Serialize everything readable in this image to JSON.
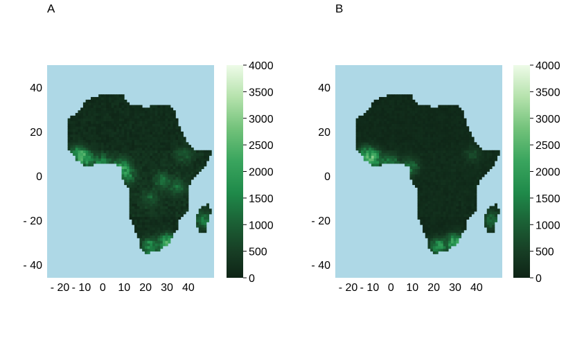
{
  "chart_data": [
    {
      "type": "heatmap",
      "panel_label": "A",
      "xticks": [
        -20,
        -10,
        0,
        10,
        20,
        30,
        40
      ],
      "xtick_labels": [
        "- 20",
        "- 10",
        "0",
        "10",
        "20",
        "30",
        "40"
      ],
      "yticks": [
        40,
        20,
        0,
        -20,
        -40
      ],
      "ytick_labels": [
        "40",
        "20",
        "0",
        "- 20",
        "- 40"
      ],
      "xlim": [
        -26,
        52
      ],
      "ylim": [
        -46,
        50
      ],
      "colorbar": {
        "ticks": [
          0,
          500,
          1000,
          1500,
          2000,
          2500,
          3000,
          3500,
          4000
        ],
        "tick_labels": [
          "0",
          "500",
          "1000",
          "1500",
          "2000",
          "2500",
          "3000",
          "3500",
          "4000"
        ],
        "range": [
          0,
          4000
        ]
      },
      "background_color": "#aed8e6",
      "hotspots": [
        {
          "lon": -8,
          "lat": 8,
          "value": 1800
        },
        {
          "lon": -12,
          "lat": 10,
          "value": 1400
        },
        {
          "lon": 0,
          "lat": 6,
          "value": 1500
        },
        {
          "lon": 9,
          "lat": 4,
          "value": 1700
        },
        {
          "lon": 12,
          "lat": 0,
          "value": 1100
        },
        {
          "lon": 28,
          "lat": -2,
          "value": 1000
        },
        {
          "lon": 35,
          "lat": -5,
          "value": 900
        },
        {
          "lon": 22,
          "lat": -10,
          "value": 800
        },
        {
          "lon": 30,
          "lat": -30,
          "value": 2300
        },
        {
          "lon": 22,
          "lat": -32,
          "value": 1900
        },
        {
          "lon": 47,
          "lat": -20,
          "value": 1300
        },
        {
          "lon": 38,
          "lat": 10,
          "value": 700
        }
      ]
    },
    {
      "type": "heatmap",
      "panel_label": "B",
      "xticks": [
        -20,
        -10,
        0,
        10,
        20,
        30,
        40
      ],
      "xtick_labels": [
        "- 20",
        "- 10",
        "0",
        "10",
        "20",
        "30",
        "40"
      ],
      "yticks": [
        40,
        20,
        0,
        -20,
        -40
      ],
      "ytick_labels": [
        "40",
        "20",
        "0",
        "- 20",
        "- 40"
      ],
      "xlim": [
        -26,
        52
      ],
      "ylim": [
        -46,
        50
      ],
      "colorbar": {
        "ticks": [
          0,
          500,
          1000,
          1500,
          2000,
          2500,
          3000,
          3500,
          4000
        ],
        "tick_labels": [
          "0",
          "500",
          "1000",
          "1500",
          "2000",
          "2500",
          "3000",
          "3500",
          "4000"
        ],
        "range": [
          0,
          4000
        ]
      },
      "background_color": "#aed8e6",
      "hotspots": [
        {
          "lon": -8,
          "lat": 8,
          "value": 2000
        },
        {
          "lon": -12,
          "lat": 10,
          "value": 1500
        },
        {
          "lon": 0,
          "lat": 6,
          "value": 1400
        },
        {
          "lon": 9,
          "lat": 4,
          "value": 1200
        },
        {
          "lon": 30,
          "lat": -30,
          "value": 2400
        },
        {
          "lon": 22,
          "lat": -32,
          "value": 2000
        },
        {
          "lon": 47,
          "lat": -20,
          "value": 1200
        },
        {
          "lon": 38,
          "lat": 10,
          "value": 500
        }
      ]
    }
  ]
}
